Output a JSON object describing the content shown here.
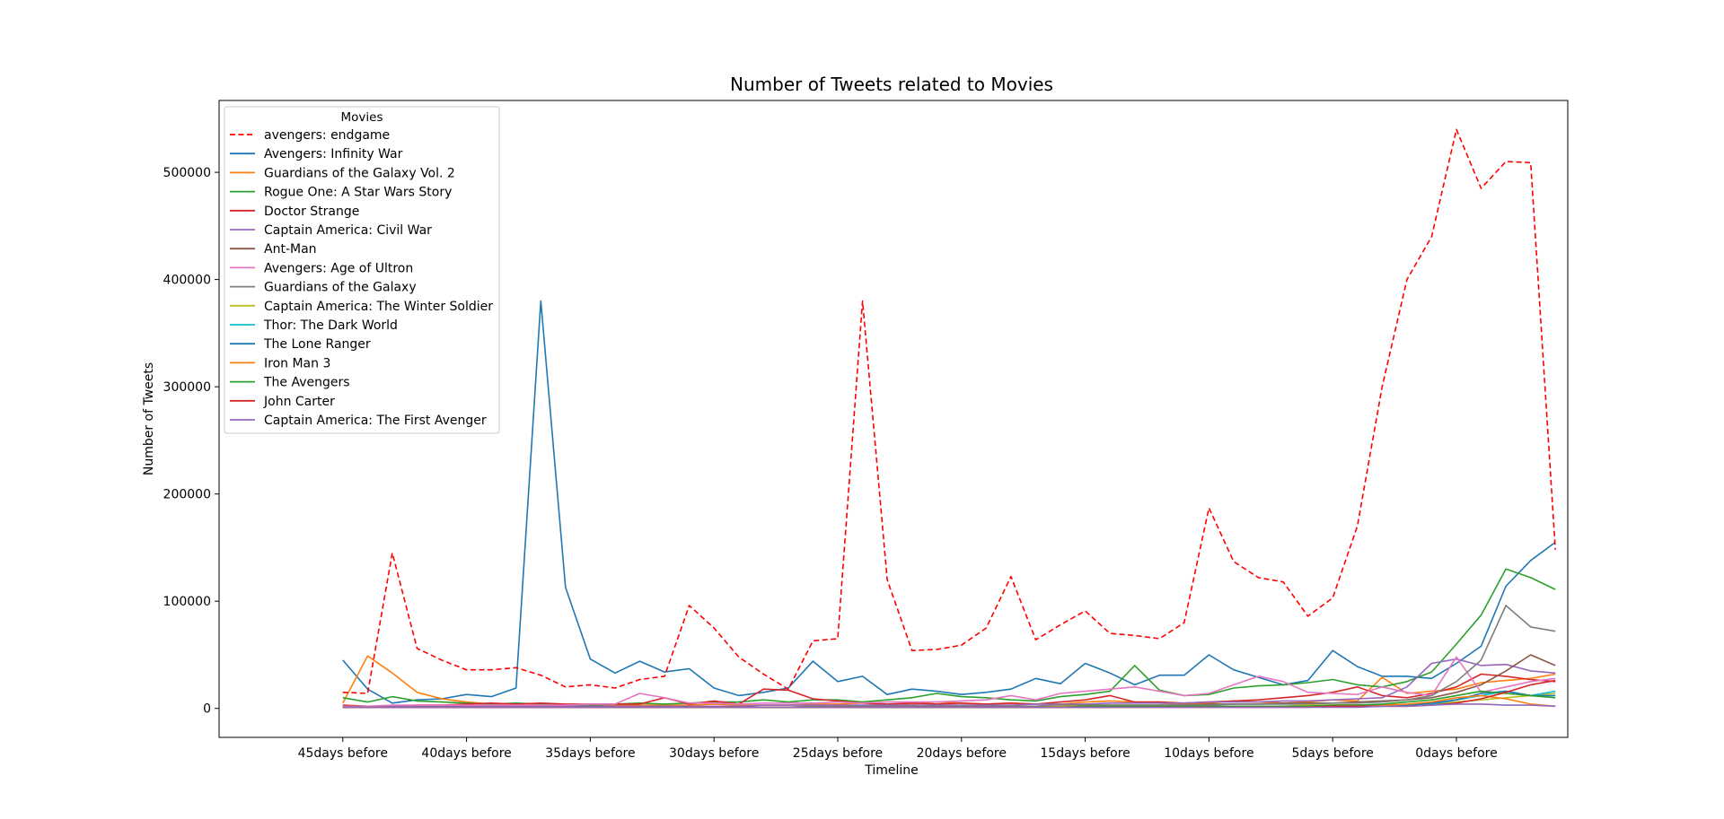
{
  "chart_data": {
    "type": "line",
    "title": "Number of Tweets related to Movies",
    "xlabel": "Timeline",
    "ylabel": "Number of Tweets",
    "xlim": [
      -50,
      4.5
    ],
    "ylim": [
      -27000,
      567000
    ],
    "xticks": [
      {
        "value": -45,
        "label": "45days before"
      },
      {
        "value": -40,
        "label": "40days before"
      },
      {
        "value": -35,
        "label": "35days before"
      },
      {
        "value": -30,
        "label": "30days before"
      },
      {
        "value": -25,
        "label": "25days before"
      },
      {
        "value": -20,
        "label": "20days before"
      },
      {
        "value": -15,
        "label": "15days before"
      },
      {
        "value": -10,
        "label": "10days before"
      },
      {
        "value": -5,
        "label": "5days before"
      },
      {
        "value": 0,
        "label": "0days before"
      }
    ],
    "yticks": [
      {
        "value": 0,
        "label": "0"
      },
      {
        "value": 100000,
        "label": "100000"
      },
      {
        "value": 200000,
        "label": "200000"
      },
      {
        "value": 300000,
        "label": "300000"
      },
      {
        "value": 400000,
        "label": "400000"
      },
      {
        "value": 500000,
        "label": "500000"
      }
    ],
    "legend": {
      "title": "Movies",
      "position": "upper-left"
    },
    "x": [
      -45,
      -44,
      -43,
      -42,
      -41,
      -40,
      -39,
      -38,
      -37,
      -36,
      -35,
      -34,
      -33,
      -32,
      -31,
      -30,
      -29,
      -28,
      -27,
      -26,
      -25,
      -24,
      -23,
      -22,
      -21,
      -20,
      -19,
      -18,
      -17,
      -16,
      -15,
      -14,
      -13,
      -12,
      -11,
      -10,
      -9,
      -8,
      -7,
      -6,
      -5,
      -4,
      -3,
      -2,
      -1,
      0,
      1,
      2,
      3,
      4
    ],
    "series": [
      {
        "name": "avengers: endgame",
        "color": "#ff0000",
        "dashed": true,
        "values": [
          15000,
          14000,
          145000,
          56000,
          45000,
          36000,
          36000,
          38000,
          31000,
          20000,
          22000,
          19000,
          27000,
          30000,
          96000,
          75000,
          48000,
          32000,
          18000,
          63000,
          65000,
          380000,
          120000,
          54000,
          55000,
          59000,
          75000,
          123000,
          64000,
          78000,
          91000,
          70000,
          68000,
          65000,
          80000,
          187000,
          137000,
          122000,
          118000,
          86000,
          103000,
          170000,
          300000,
          400000,
          440000,
          540000,
          485000,
          510000,
          509000,
          148000
        ]
      },
      {
        "name": "Avengers: Infinity War",
        "color": "#1f77b4",
        "values": [
          45000,
          18000,
          5000,
          8000,
          9000,
          13000,
          11000,
          19000,
          380000,
          113000,
          46000,
          33000,
          44000,
          34000,
          37000,
          19000,
          12000,
          15000,
          19000,
          44000,
          25000,
          30000,
          13000,
          18000,
          16000,
          13000,
          15000,
          18000,
          28000,
          23000,
          42000,
          33000,
          22000,
          31000,
          31000,
          50000,
          36000,
          29000,
          22000,
          26000,
          54000,
          39000,
          30000,
          30000,
          28000,
          42000,
          58000,
          114000,
          138000,
          155000
        ]
      },
      {
        "name": "Guardians of the Galaxy Vol. 2",
        "color": "#ff7f0e",
        "values": [
          5000,
          49000,
          33000,
          15000,
          9000,
          6000,
          4000,
          3000,
          3000,
          2000,
          2000,
          3000,
          3000,
          3000,
          3000,
          4000,
          3000,
          3000,
          3000,
          4000,
          4000,
          5000,
          3000,
          4000,
          6000,
          5000,
          4000,
          5000,
          4000,
          4000,
          6000,
          7000,
          6000,
          5000,
          4000,
          5000,
          7000,
          6000,
          5000,
          6000,
          8000,
          7000,
          29000,
          14000,
          16000,
          18000,
          24000,
          26000,
          28000,
          32000
        ]
      },
      {
        "name": "Rogue One: A Star Wars Story",
        "color": "#2ca02c",
        "values": [
          10000,
          6000,
          11000,
          7000,
          6000,
          5000,
          4000,
          5000,
          4000,
          3000,
          3000,
          4000,
          5000,
          4000,
          5000,
          6000,
          6000,
          8000,
          6000,
          8000,
          8000,
          6000,
          8000,
          10000,
          14000,
          11000,
          10000,
          8000,
          7000,
          11000,
          13000,
          16000,
          40000,
          17000,
          12000,
          13000,
          19000,
          21000,
          22000,
          24000,
          27000,
          22000,
          20000,
          25000,
          34000,
          60000,
          87000,
          130000,
          122000,
          111000
        ]
      },
      {
        "name": "Doctor Strange",
        "color": "#d62728",
        "values": [
          3000,
          2000,
          2000,
          3000,
          3000,
          4000,
          5000,
          4000,
          5000,
          4000,
          4000,
          4000,
          4000,
          10000,
          4000,
          7000,
          4000,
          18000,
          17000,
          9000,
          7000,
          5000,
          4000,
          5000,
          4000,
          5000,
          4000,
          5000,
          4000,
          6000,
          8000,
          12000,
          6000,
          6000,
          5000,
          6000,
          7000,
          8000,
          10000,
          12000,
          15000,
          20000,
          12000,
          10000,
          14000,
          20000,
          32000,
          30000,
          27000,
          25000
        ]
      },
      {
        "name": "Captain America: Civil War",
        "color": "#9467bd",
        "values": [
          2000,
          2000,
          2000,
          2000,
          2000,
          2000,
          2000,
          2000,
          2000,
          2000,
          2000,
          2000,
          2000,
          2000,
          2000,
          2000,
          2000,
          3000,
          3000,
          3000,
          3000,
          3000,
          3000,
          3000,
          3000,
          3000,
          3000,
          3000,
          4000,
          4000,
          4000,
          5000,
          5000,
          5000,
          5000,
          6000,
          6000,
          6000,
          7000,
          7000,
          8000,
          9000,
          10000,
          20000,
          42000,
          46000,
          40000,
          41000,
          35000,
          33000
        ]
      },
      {
        "name": "Ant-Man",
        "color": "#8c564b",
        "values": [
          1000,
          1000,
          1000,
          1000,
          1000,
          1000,
          1000,
          1000,
          1000,
          1000,
          1000,
          1000,
          1000,
          1000,
          1000,
          1000,
          1000,
          1000,
          1000,
          2000,
          2000,
          2000,
          2000,
          2000,
          2000,
          2000,
          2000,
          2000,
          2000,
          3000,
          3000,
          3000,
          3000,
          3000,
          3000,
          4000,
          4000,
          4000,
          5000,
          5000,
          5000,
          6000,
          7000,
          8000,
          10000,
          15000,
          22000,
          35000,
          50000,
          40000
        ]
      },
      {
        "name": "Avengers: Age of Ultron",
        "color": "#e377c2",
        "values": [
          2000,
          2000,
          3000,
          3000,
          3000,
          3000,
          3000,
          3000,
          3000,
          3000,
          4000,
          4000,
          14000,
          10000,
          5000,
          5000,
          4000,
          5000,
          5000,
          5000,
          6000,
          5000,
          6000,
          6000,
          6000,
          7000,
          8000,
          12000,
          8000,
          14000,
          16000,
          18000,
          20000,
          16000,
          12000,
          14000,
          22000,
          30000,
          25000,
          15000,
          14000,
          13000,
          20000,
          15000,
          12000,
          48000,
          15000,
          20000,
          25000,
          28000
        ]
      },
      {
        "name": "Guardians of the Galaxy",
        "color": "#7f7f7f",
        "values": [
          1000,
          1000,
          1000,
          1000,
          1000,
          1000,
          1000,
          1000,
          1000,
          1000,
          1000,
          1000,
          1000,
          1000,
          1000,
          1000,
          1000,
          1000,
          1000,
          2000,
          2000,
          2000,
          2000,
          2000,
          2000,
          2000,
          2000,
          2000,
          2000,
          3000,
          3000,
          3000,
          3000,
          3000,
          3000,
          3000,
          4000,
          4000,
          4000,
          4000,
          5000,
          5000,
          6000,
          8000,
          12000,
          25000,
          45000,
          96000,
          76000,
          72000
        ]
      },
      {
        "name": "Captain America: The Winter Soldier",
        "color": "#bcbd22",
        "values": [
          1000,
          1000,
          1000,
          1000,
          1000,
          1000,
          1000,
          1000,
          1000,
          1000,
          1000,
          1000,
          1000,
          1000,
          1000,
          1000,
          1000,
          1000,
          1000,
          1000,
          1000,
          1000,
          1000,
          1000,
          1000,
          1000,
          1000,
          1000,
          1000,
          2000,
          2000,
          2000,
          2000,
          2000,
          2000,
          2000,
          2000,
          2000,
          2000,
          3000,
          3000,
          3000,
          3000,
          3000,
          4000,
          6000,
          8000,
          10000,
          12000,
          14000
        ]
      },
      {
        "name": "Thor: The Dark World",
        "color": "#17becf",
        "values": [
          1000,
          1000,
          1000,
          1000,
          1000,
          1000,
          1000,
          1000,
          1000,
          1000,
          1000,
          1000,
          1000,
          1000,
          1000,
          1000,
          1000,
          1000,
          1000,
          1000,
          1000,
          1000,
          1000,
          1000,
          1000,
          1000,
          1000,
          1000,
          1000,
          1000,
          2000,
          2000,
          2000,
          2000,
          2000,
          2000,
          2000,
          2000,
          2000,
          2000,
          2000,
          3000,
          3000,
          3000,
          4000,
          8000,
          12000,
          16000,
          12000,
          16000
        ]
      },
      {
        "name": "The Lone Ranger",
        "color": "#1f77b4",
        "values": [
          1000,
          1000,
          1000,
          1000,
          1000,
          1000,
          1000,
          1000,
          1000,
          1000,
          1000,
          1000,
          1000,
          1000,
          1000,
          1000,
          1000,
          1000,
          1000,
          1000,
          1000,
          1000,
          1000,
          1000,
          1000,
          1000,
          1000,
          1000,
          1000,
          1000,
          1000,
          1000,
          2000,
          2000,
          2000,
          2000,
          2000,
          2000,
          2000,
          2000,
          2000,
          2000,
          2000,
          3000,
          5000,
          8000,
          14000,
          16000,
          12000,
          12000
        ]
      },
      {
        "name": "Iron Man 3",
        "color": "#ff7f0e",
        "values": [
          1000,
          1000,
          1000,
          1000,
          1000,
          1000,
          1000,
          1000,
          1000,
          1000,
          1000,
          1000,
          1000,
          1000,
          1000,
          1000,
          1000,
          1000,
          1000,
          1000,
          1000,
          1000,
          1000,
          1000,
          1000,
          1000,
          1000,
          1000,
          1000,
          1000,
          2000,
          2000,
          2000,
          2000,
          2000,
          2000,
          2000,
          2000,
          2000,
          2000,
          3000,
          3000,
          3000,
          4000,
          6000,
          10000,
          12000,
          9000,
          4000,
          2000
        ]
      },
      {
        "name": "The Avengers",
        "color": "#2ca02c",
        "values": [
          1000,
          1000,
          1000,
          1000,
          1000,
          1000,
          1000,
          1000,
          1000,
          1000,
          1000,
          1000,
          1000,
          1000,
          1000,
          1000,
          1000,
          1000,
          1000,
          1000,
          1000,
          1000,
          1000,
          1000,
          1000,
          1000,
          1000,
          1000,
          1000,
          1000,
          2000,
          2000,
          2000,
          2000,
          2000,
          2000,
          2000,
          2000,
          2000,
          2000,
          3000,
          3000,
          4000,
          6000,
          8000,
          12000,
          16000,
          14000,
          12000,
          10000
        ]
      },
      {
        "name": "John Carter",
        "color": "#d62728",
        "values": [
          1000,
          1000,
          1000,
          1000,
          1000,
          1000,
          1000,
          1000,
          1000,
          1000,
          1000,
          1000,
          1000,
          1000,
          1000,
          1000,
          1000,
          1000,
          1000,
          1000,
          1000,
          1000,
          1000,
          1000,
          1000,
          1000,
          1000,
          1000,
          1000,
          1000,
          1000,
          1000,
          1000,
          1000,
          1000,
          1000,
          1000,
          1000,
          1000,
          1000,
          2000,
          2000,
          2000,
          2000,
          3000,
          5000,
          9000,
          15000,
          22000,
          26000
        ]
      },
      {
        "name": "Captain America: The First Avenger",
        "color": "#9467bd",
        "values": [
          1000,
          1000,
          1000,
          1000,
          1000,
          1000,
          1000,
          1000,
          1000,
          1000,
          1000,
          1000,
          1000,
          1000,
          1000,
          1000,
          1000,
          1000,
          1000,
          1000,
          1000,
          1000,
          1000,
          1000,
          1000,
          1000,
          1000,
          1000,
          1000,
          1000,
          1000,
          1000,
          1000,
          1000,
          1000,
          1000,
          1000,
          1000,
          1000,
          1000,
          1000,
          1000,
          2000,
          2000,
          3000,
          4000,
          4000,
          3000,
          3000,
          2000
        ]
      }
    ]
  }
}
